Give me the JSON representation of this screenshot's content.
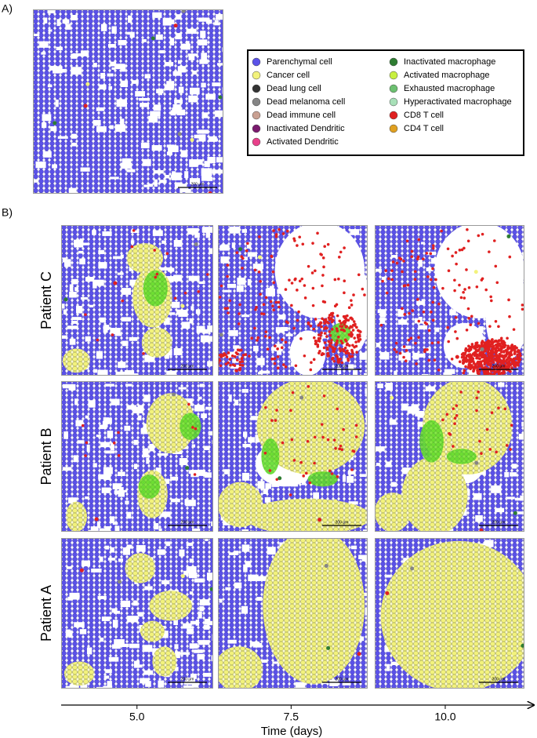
{
  "panel_a": {
    "label": "A)",
    "scale_bar": "200 μm"
  },
  "legend": [
    {
      "name": "Parenchymal cell",
      "color": "#5b52e8"
    },
    {
      "name": "Cancer cell",
      "color": "#f2f27c"
    },
    {
      "name": "Dead lung cell",
      "color": "#333333"
    },
    {
      "name": "Dead melanoma cell",
      "color": "#858585"
    },
    {
      "name": "Dead immune cell",
      "color": "#c9a092"
    },
    {
      "name": "Inactivated Dendritic",
      "color": "#7a1a6e"
    },
    {
      "name": "Activated Dendritic",
      "color": "#e8408a"
    },
    {
      "name": "Inactivated macrophage",
      "color": "#2e7d32"
    },
    {
      "name": "Activated macrophage",
      "color": "#c8f040"
    },
    {
      "name": "Exhausted macrophage",
      "color": "#6cc070"
    },
    {
      "name": "Hyperactivated macrophage",
      "color": "#a8e0b8"
    },
    {
      "name": "CD8 T cell",
      "color": "#e02020"
    },
    {
      "name": "CD4 T cell",
      "color": "#e0a020"
    }
  ],
  "panel_b": {
    "label": "B)",
    "rows": [
      {
        "label": "Patient C",
        "scale_bars": [
          "200 μm",
          "200 μm",
          "200 μm"
        ]
      },
      {
        "label": "Patient B",
        "scale_bars": [
          "200 μm",
          "200 μm",
          "200 μm"
        ]
      },
      {
        "label": "Patient A",
        "scale_bars": [
          "200 μm",
          "200 μm",
          "200 μm"
        ]
      }
    ]
  },
  "time_axis": {
    "label": "Time (days)",
    "xlim": [
      3.77,
      11.45
    ],
    "ticks": [
      {
        "value": 5,
        "label": "5.0"
      },
      {
        "value": 7.5,
        "label": "7.5"
      },
      {
        "value": 10,
        "label": "10.0"
      }
    ]
  }
}
